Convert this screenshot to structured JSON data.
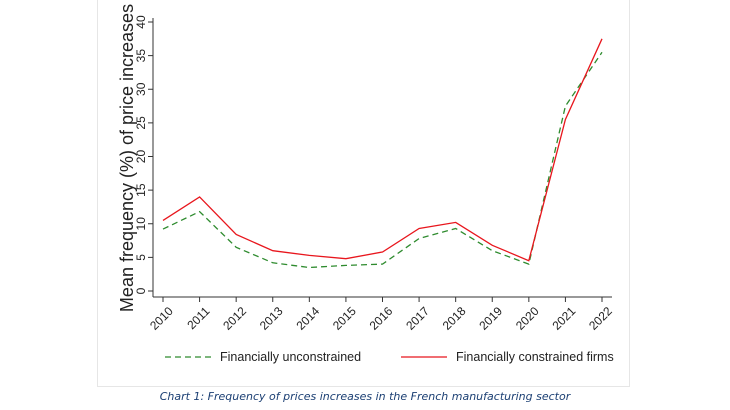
{
  "chart_data": {
    "type": "line",
    "title": "",
    "xlabel": "",
    "ylabel": "Mean frequency (%) of price increases",
    "x": [
      "2010",
      "2011",
      "2012",
      "2013",
      "2014",
      "2015",
      "2016",
      "2017",
      "2018",
      "2019",
      "2020",
      "2021",
      "2022"
    ],
    "ylim": [
      0,
      40
    ],
    "yticks": [
      "0",
      "5",
      "10",
      "15",
      "20",
      "25",
      "30",
      "35",
      "40"
    ],
    "grid": false,
    "legend_position": "bottom",
    "series": [
      {
        "name": "Financially unconstrained",
        "style": "dashed",
        "color": "#2e8b2e",
        "values": [
          9.2,
          11.8,
          6.5,
          4.2,
          3.5,
          3.8,
          4.0,
          7.8,
          9.3,
          6.0,
          4.0,
          27.5,
          35.5
        ]
      },
      {
        "name": "Financially constrained firms",
        "style": "solid",
        "color": "#e8161d",
        "values": [
          10.5,
          14.0,
          8.4,
          6.0,
          5.3,
          4.8,
          5.8,
          9.3,
          10.2,
          6.8,
          4.5,
          25.5,
          37.5
        ]
      }
    ]
  },
  "caption": "Chart 1: Frequency of prices increases in the French manufacturing sector"
}
